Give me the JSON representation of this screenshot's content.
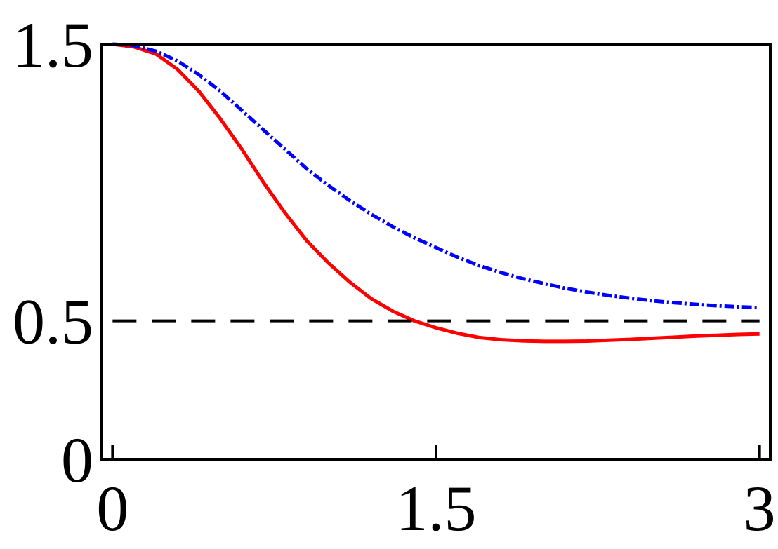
{
  "chart_data": {
    "type": "line",
    "title": "",
    "xlabel": "",
    "ylabel": "",
    "xlim": [
      -0.05,
      3.05
    ],
    "ylim": [
      0,
      1.5
    ],
    "x_ticks": [
      0,
      1.5,
      3
    ],
    "x_tick_labels": [
      "0",
      "1.5",
      "3"
    ],
    "y_ticks": [
      0,
      0.5,
      1.5
    ],
    "y_tick_labels": [
      "0",
      "0.5",
      "1.5"
    ],
    "grid": false,
    "legend": "none",
    "series": [
      {
        "style": "solid",
        "color": "#ff0000",
        "x": [
          0,
          0.1,
          0.2,
          0.3,
          0.4,
          0.5,
          0.6,
          0.7,
          0.8,
          0.9,
          1.0,
          1.1,
          1.2,
          1.3,
          1.4,
          1.5,
          1.6,
          1.7,
          1.8,
          1.9,
          2.0,
          2.1,
          2.2,
          2.3,
          2.4,
          2.5,
          2.6,
          2.7,
          2.8,
          2.9,
          3.0
        ],
        "y": [
          1.5,
          1.49,
          1.465,
          1.41,
          1.33,
          1.23,
          1.12,
          1.0,
          0.89,
          0.79,
          0.71,
          0.64,
          0.58,
          0.535,
          0.5,
          0.475,
          0.455,
          0.44,
          0.432,
          0.428,
          0.426,
          0.426,
          0.427,
          0.43,
          0.433,
          0.437,
          0.441,
          0.445,
          0.448,
          0.451,
          0.453
        ]
      },
      {
        "style": "dot-dash",
        "color": "#0000ff",
        "x": [
          0,
          0.1,
          0.2,
          0.3,
          0.4,
          0.5,
          0.6,
          0.7,
          0.8,
          0.9,
          1.0,
          1.1,
          1.2,
          1.3,
          1.4,
          1.5,
          1.6,
          1.7,
          1.8,
          1.9,
          2.0,
          2.1,
          2.2,
          2.3,
          2.4,
          2.5,
          2.6,
          2.7,
          2.8,
          2.9,
          3.0
        ],
        "y": [
          1.5,
          1.495,
          1.475,
          1.44,
          1.39,
          1.33,
          1.26,
          1.19,
          1.12,
          1.05,
          0.99,
          0.935,
          0.885,
          0.84,
          0.8,
          0.765,
          0.73,
          0.7,
          0.675,
          0.653,
          0.635,
          0.618,
          0.604,
          0.592,
          0.582,
          0.573,
          0.566,
          0.56,
          0.555,
          0.551,
          0.548
        ]
      },
      {
        "style": "dashed",
        "color": "#000000",
        "x": [
          0,
          3.0
        ],
        "y": [
          0.5,
          0.5
        ]
      }
    ]
  }
}
